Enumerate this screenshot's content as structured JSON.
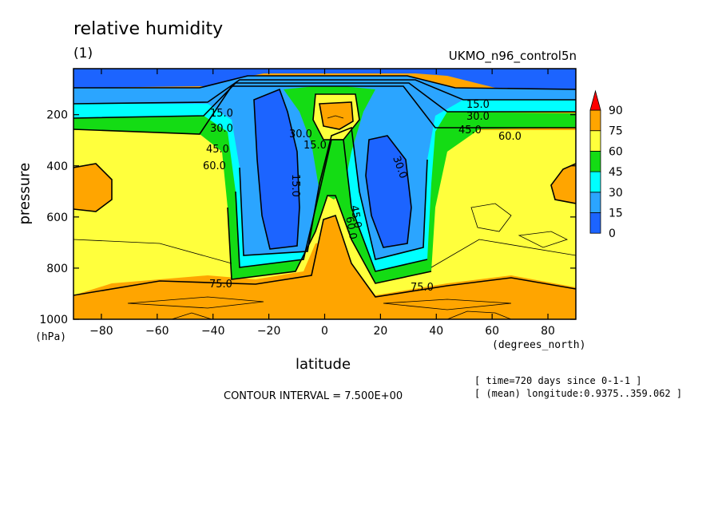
{
  "header": {
    "title": "relative humidity",
    "subtitle": "(1)",
    "dataset": "UKMO_n96_control5n"
  },
  "axes": {
    "xlabel": "latitude",
    "xunits": "(degrees_north)",
    "ylabel": "pressure",
    "yunits": "(hPa)"
  },
  "footer": {
    "contour_interval": "CONTOUR INTERVAL = 7.500E+00",
    "time": "[ time=720 days since 0-1-1 ]",
    "longitude": "[ (mean) longitude:0.9375..359.062 ]"
  },
  "chart_data": {
    "type": "contour",
    "title": "relative humidity",
    "subtitle": "(1)",
    "xlabel": "latitude",
    "ylabel": "pressure",
    "xlim": [
      -90,
      90
    ],
    "ylim": [
      1000,
      20
    ],
    "y_reversed": true,
    "x_ticks": [
      -80,
      -60,
      -40,
      -20,
      0,
      20,
      40,
      60,
      80
    ],
    "y_ticks": [
      200,
      400,
      600,
      800,
      1000
    ],
    "colorbar": {
      "levels": [
        0,
        15,
        30,
        45,
        60,
        75,
        90
      ],
      "labels": [
        "0",
        "15",
        "30",
        "45",
        "60",
        "75",
        "90"
      ],
      "colors": [
        "#1c64ff",
        "#2ba5ff",
        "#00ffff",
        "#14dc14",
        "#ffff3c",
        "#ffa500",
        "#ff0000"
      ],
      "extend": "max"
    },
    "contour_labels": [
      "15.0",
      "30.0",
      "45.0",
      "60.0",
      "75.0"
    ],
    "contour_interval": 7.5
  }
}
